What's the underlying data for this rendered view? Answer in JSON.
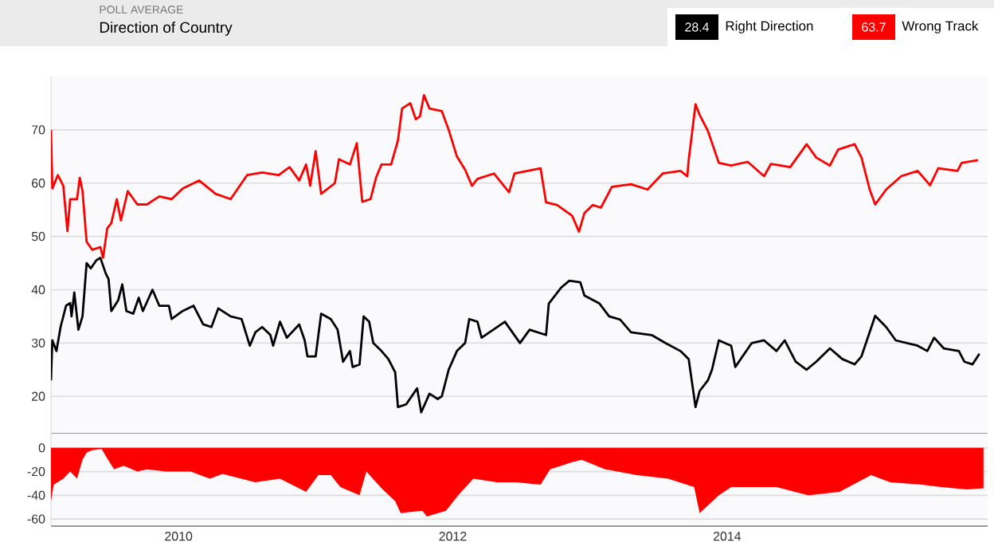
{
  "chart_data": [
    {
      "type": "line",
      "title": "Direction of Country",
      "subtitle": "POLL AVERAGE",
      "legend": "top right",
      "grid": "y",
      "tick_labels": "y",
      "annotations": [
        "28.4",
        "63.7"
      ],
      "xlim": [
        2009.07,
        2015.9
      ],
      "ylim": [
        13,
        80
      ],
      "yticks": [
        20,
        30,
        40,
        50,
        60,
        70
      ],
      "series": [
        {
          "name": "Right Direction",
          "color": "#000000",
          "x": [
            2009.07,
            2009.08,
            2009.11,
            2009.14,
            2009.18,
            2009.21,
            2009.22,
            2009.24,
            2009.27,
            2009.3,
            2009.33,
            2009.36,
            2009.4,
            2009.43,
            2009.47,
            2009.49,
            2009.51,
            2009.56,
            2009.59,
            2009.62,
            2009.67,
            2009.71,
            2009.74,
            2009.81,
            2009.86,
            2009.93,
            2009.95,
            2010.03,
            2010.11,
            2010.18,
            2010.24,
            2010.29,
            2010.38,
            2010.46,
            2010.52,
            2010.56,
            2010.61,
            2010.67,
            2010.69,
            2010.74,
            2010.79,
            2010.88,
            2010.92,
            2010.94,
            2011.0,
            2011.04,
            2011.11,
            2011.16,
            2011.2,
            2011.25,
            2011.27,
            2011.32,
            2011.35,
            2011.39,
            2011.42,
            2011.48,
            2011.53,
            2011.58,
            2011.6,
            2011.66,
            2011.74,
            2011.77,
            2011.83,
            2011.89,
            2011.92,
            2011.97,
            2012.03,
            2012.09,
            2012.12,
            2012.18,
            2012.21,
            2012.38,
            2012.49,
            2012.56,
            2012.68,
            2012.7,
            2012.79,
            2012.85,
            2012.93,
            2012.96,
            2013.07,
            2013.14,
            2013.22,
            2013.3,
            2013.45,
            2013.55,
            2013.66,
            2013.72,
            2013.77,
            2013.8,
            2013.86,
            2013.89,
            2013.94,
            2014.03,
            2014.06,
            2014.18,
            2014.27,
            2014.36,
            2014.42,
            2014.5,
            2014.58,
            2014.65,
            2014.75,
            2014.84,
            2014.93,
            2014.98,
            2015.08,
            2015.16,
            2015.23,
            2015.39,
            2015.46,
            2015.51,
            2015.58,
            2015.69,
            2015.73,
            2015.79,
            2015.84
          ],
          "values": [
            23,
            30.5,
            28.5,
            33,
            37,
            37.5,
            35,
            39.5,
            32.5,
            35,
            45,
            44,
            45.5,
            46,
            43,
            42,
            36,
            38,
            41,
            36,
            35.5,
            38.5,
            36,
            40,
            37,
            37,
            34.5,
            36,
            37,
            33.5,
            33,
            36.5,
            35,
            34.5,
            29.5,
            32,
            33,
            31.5,
            29.5,
            34,
            31,
            33.5,
            30.5,
            27.5,
            27.5,
            35.5,
            34.5,
            32.5,
            26.5,
            28.5,
            25.5,
            26,
            35,
            34,
            30,
            28.5,
            27,
            24.5,
            18,
            18.5,
            21.5,
            17,
            20.5,
            19.5,
            20,
            25,
            28.5,
            30,
            34.5,
            34,
            31,
            34,
            30,
            32.5,
            31.5,
            37.4,
            40.4,
            41.7,
            41.4,
            38.9,
            37.4,
            35,
            34.4,
            32,
            31.5,
            30,
            28.5,
            27,
            18,
            21,
            23,
            25,
            30.5,
            29.5,
            25.5,
            30,
            30.5,
            28.5,
            30.5,
            26.5,
            25,
            26.5,
            29,
            27,
            26,
            27.5,
            35.1,
            33,
            30.5,
            29.5,
            28.5,
            31,
            29,
            28.5,
            26.5,
            26,
            28
          ]
        },
        {
          "name": "Wrong Track",
          "color": "#ff0000",
          "x": [
            2009.07,
            2009.08,
            2009.12,
            2009.16,
            2009.19,
            2009.21,
            2009.26,
            2009.28,
            2009.3,
            2009.33,
            2009.37,
            2009.43,
            2009.45,
            2009.48,
            2009.51,
            2009.55,
            2009.58,
            2009.63,
            2009.7,
            2009.77,
            2009.86,
            2009.95,
            2010.03,
            2010.15,
            2010.27,
            2010.38,
            2010.5,
            2010.61,
            2010.73,
            2010.81,
            2010.88,
            2010.93,
            2010.96,
            2011.0,
            2011.04,
            2011.14,
            2011.17,
            2011.25,
            2011.3,
            2011.34,
            2011.4,
            2011.44,
            2011.48,
            2011.55,
            2011.6,
            2011.63,
            2011.69,
            2011.73,
            2011.76,
            2011.79,
            2011.83,
            2011.92,
            2011.97,
            2012.03,
            2012.09,
            2012.14,
            2012.18,
            2012.3,
            2012.41,
            2012.45,
            2012.64,
            2012.68,
            2012.76,
            2012.87,
            2012.92,
            2012.96,
            2013.02,
            2013.08,
            2013.16,
            2013.3,
            2013.42,
            2013.53,
            2013.66,
            2013.71,
            2013.72,
            2013.77,
            2013.8,
            2013.86,
            2013.94,
            2014.03,
            2014.15,
            2014.27,
            2014.32,
            2014.46,
            2014.58,
            2014.65,
            2014.75,
            2014.81,
            2014.93,
            2014.98,
            2015.04,
            2015.08,
            2015.16,
            2015.27,
            2015.39,
            2015.48,
            2015.54,
            2015.68,
            2015.71,
            2015.83
          ],
          "values": [
            70,
            59,
            61.5,
            59.5,
            51,
            57,
            57,
            61,
            58.5,
            49,
            47.5,
            48,
            46,
            51.5,
            52.5,
            57,
            53,
            58.5,
            56,
            56,
            57.5,
            57,
            59,
            60.5,
            58,
            57,
            61.5,
            62,
            61.5,
            63,
            60.5,
            63.5,
            59.5,
            66,
            58,
            60,
            64.5,
            63.5,
            67.5,
            56.5,
            57,
            61,
            63.5,
            63.5,
            68,
            74,
            75,
            72,
            72.5,
            76.5,
            74,
            73.5,
            70,
            65,
            62.5,
            59.5,
            60.8,
            61.8,
            58.3,
            61.8,
            62.8,
            56.4,
            55.9,
            53.9,
            50.9,
            54.4,
            55.9,
            55.4,
            59.3,
            59.8,
            58.8,
            61.8,
            62.3,
            61.3,
            64.3,
            74.8,
            72.8,
            69.8,
            63.8,
            63.3,
            64,
            61.3,
            63.6,
            63,
            67.3,
            64.8,
            63.3,
            66.3,
            67.3,
            64.8,
            58.8,
            56,
            58.8,
            61.3,
            62.3,
            59.6,
            62.8,
            62.3,
            63.8,
            64.3
          ]
        }
      ]
    },
    {
      "type": "area",
      "grid": "y",
      "xlim": [
        2009.07,
        2015.9
      ],
      "xticks": [
        2010,
        2012,
        2014
      ],
      "ylim": [
        -66,
        12
      ],
      "yticks": [
        0,
        -20,
        -40,
        -60
      ],
      "series": [
        {
          "color": "#ff0000",
          "x": [
            2009.07,
            2009.09,
            2009.16,
            2009.21,
            2009.26,
            2009.3,
            2009.33,
            2009.37,
            2009.44,
            2009.47,
            2009.53,
            2009.6,
            2009.7,
            2009.77,
            2009.91,
            2010.09,
            2010.23,
            2010.32,
            2010.56,
            2010.74,
            2010.93,
            2011.02,
            2011.11,
            2011.18,
            2011.32,
            2011.37,
            2011.48,
            2011.58,
            2011.62,
            2011.78,
            2011.81,
            2011.95,
            2012.04,
            2012.15,
            2012.32,
            2012.46,
            2012.64,
            2012.71,
            2012.87,
            2012.94,
            2013.11,
            2013.34,
            2013.57,
            2013.76,
            2013.8,
            2013.94,
            2014.03,
            2014.36,
            2014.59,
            2014.82,
            2015.05,
            2015.19,
            2015.42,
            2015.56,
            2015.75,
            2015.87
          ],
          "values": [
            -45,
            -31,
            -26,
            -20,
            -26,
            -10,
            -4,
            -2,
            -1,
            -7,
            -18,
            -15,
            -20,
            -18,
            -20,
            -20,
            -26,
            -22,
            -29,
            -26,
            -37,
            -23,
            -23,
            -33,
            -40,
            -20,
            -34,
            -45,
            -55,
            -53,
            -58,
            -53,
            -40,
            -26,
            -29,
            -29,
            -31,
            -18,
            -12,
            -10,
            -18,
            -23,
            -26,
            -33,
            -55,
            -40,
            -33,
            -33,
            -40,
            -37,
            -23,
            -29,
            -31,
            -33,
            -35,
            -34
          ]
        }
      ]
    }
  ]
}
